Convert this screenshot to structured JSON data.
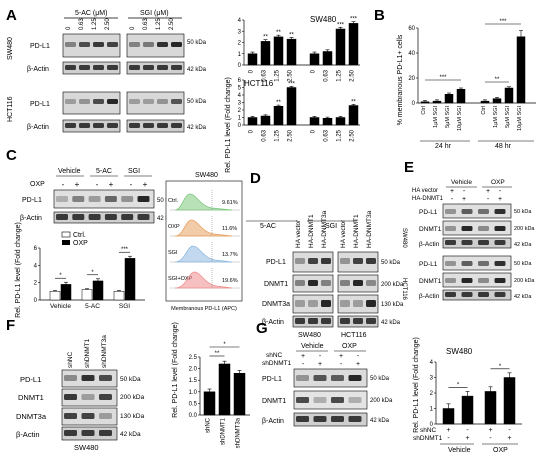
{
  "panels": [
    {
      "letter": "A"
    },
    {
      "letter": "B"
    },
    {
      "letter": "C"
    },
    {
      "letter": "D"
    },
    {
      "letter": "E"
    },
    {
      "letter": "F"
    },
    {
      "letter": "G"
    }
  ],
  "panelA": {
    "treat_5ac": "5-AC (μM)",
    "treat_sgi": "SGI (μM)",
    "doses": [
      "0",
      "0.63",
      "1.25",
      "2.50"
    ],
    "cell_sw": "SW480",
    "cell_hct": "HCT116",
    "band_pdl1": "PD-L1",
    "band_actin": "β-Actin",
    "mw_50": "50 kDa",
    "mw_42": "42 kDa"
  },
  "chart_data": [
    {
      "id": "A_sw480",
      "type": "bar",
      "title": "SW480",
      "ylabel": "Rel. PD-L1 level (Fold change)",
      "groups": [
        "5-AC",
        "SGI"
      ],
      "categories": [
        "0",
        "0.63",
        "1.25",
        "2.50"
      ],
      "series": [
        {
          "name": "5-AC",
          "values": [
            1.0,
            2.1,
            2.5,
            2.3
          ]
        },
        {
          "name": "SGI",
          "values": [
            1.0,
            1.2,
            3.2,
            3.7
          ]
        }
      ],
      "ylim": [
        0,
        4
      ],
      "yticks": [
        "0",
        "1",
        "2",
        "3",
        "4"
      ],
      "annotations": [
        [
          "",
          "**",
          "**",
          "**"
        ],
        [
          "",
          "",
          "***",
          "***"
        ]
      ]
    },
    {
      "id": "A_hct116",
      "type": "bar",
      "title": "HCT116",
      "groups": [
        "5-AC",
        "SGI"
      ],
      "categories": [
        "0",
        "0.63",
        "1.25",
        "2.50"
      ],
      "series": [
        {
          "name": "5-AC",
          "values": [
            1.0,
            1.2,
            2.5,
            5.0
          ]
        },
        {
          "name": "SGI",
          "values": [
            1.0,
            0.9,
            1.0,
            2.6
          ]
        }
      ],
      "ylim": [
        0,
        6
      ],
      "yticks": [
        "0",
        "1",
        "2",
        "3",
        "4",
        "5",
        "6"
      ],
      "annotations": [
        [
          "",
          "",
          "**",
          "***"
        ],
        [
          "",
          "",
          "",
          "**"
        ]
      ]
    },
    {
      "id": "B",
      "type": "bar",
      "ylabel": "% membranous PD-L1+ cells",
      "groups": [
        "24 hr",
        "48 hr"
      ],
      "categories": [
        "Ctrl",
        "1μM SGI",
        "5μM SGI",
        "10μM SGI"
      ],
      "series": [
        {
          "name": "24 hr",
          "values": [
            1.0,
            1.5,
            7.0,
            11.0
          ]
        },
        {
          "name": "48 hr",
          "values": [
            1.5,
            3.5,
            12.0,
            53.0
          ]
        }
      ],
      "ylim": [
        0,
        60
      ],
      "yticks": [
        "0",
        "20",
        "40",
        "60"
      ],
      "brackets": [
        "***",
        "**",
        "***"
      ]
    },
    {
      "id": "C",
      "type": "bar",
      "ylabel": "Rel. PD-L1 level (Fold change)",
      "categories": [
        "Vehicle",
        "5-AC",
        "SGI"
      ],
      "series": [
        {
          "name": "Ctrl.",
          "values": [
            1.0,
            1.2,
            1.0
          ]
        },
        {
          "name": "OXP",
          "values": [
            1.8,
            2.2,
            4.8
          ]
        }
      ],
      "ylim": [
        0,
        6
      ],
      "yticks": [
        "0",
        "2",
        "4",
        "6"
      ],
      "annotations": [
        "*",
        "*",
        "***"
      ]
    },
    {
      "id": "F",
      "type": "bar",
      "ylabel": "Rel. PD-L1 level (Fold change)",
      "categories": [
        "shNC",
        "shDNMT1",
        "shDNMT3a"
      ],
      "values": [
        1.0,
        2.2,
        1.8
      ],
      "ylim": [
        0,
        2.5
      ],
      "yticks": [
        "0.0",
        "0.5",
        "1.0",
        "1.5",
        "2.0",
        "2.5"
      ],
      "brackets": [
        "**",
        "*"
      ]
    },
    {
      "id": "G",
      "type": "bar",
      "title": "SW480",
      "ylabel": "Rel. PD-L1 level (Fold change)",
      "categories": [
        "Vehicle -",
        "Vehicle +",
        "OXP -",
        "OXP +"
      ],
      "values": [
        1.0,
        1.8,
        2.1,
        3.0
      ],
      "ylim": [
        0,
        4
      ],
      "yticks": [
        "0",
        "1",
        "2",
        "3",
        "4"
      ],
      "brackets": [
        "*",
        "*"
      ]
    }
  ],
  "panelB": {
    "x_ctrl": "Ctrl",
    "x_1": "1μM SGI",
    "x_5": "5μM SGI",
    "x_10": "10μM SGI",
    "t24": "24 hr",
    "t48": "48 hr"
  },
  "panelC": {
    "oxp": "OXP",
    "vehicle": "Vehicle",
    "ac": "5-AC",
    "sgi": "SGI",
    "legend_ctrl": "Ctrl.",
    "legend_oxp": "OXP",
    "flow_title": "SW480",
    "flow_xlabel": "Membranous PD-L1 (APC)",
    "flow_rows": [
      {
        "label": "Ctrl.",
        "pct": "9.61%",
        "color": "#7ec87e"
      },
      {
        "label": "OXP",
        "pct": "11.6%",
        "color": "#e8a060"
      },
      {
        "label": "SGI",
        "pct": "13.7%",
        "color": "#8fb8e0"
      },
      {
        "label": "SGI+OXP",
        "pct": "19.6%",
        "color": "#f08c8c"
      }
    ]
  },
  "panelD": {
    "lanes_sw": [
      "HA vector",
      "HA-DNMT1",
      "HA-DNMT3a"
    ],
    "lanes_hct": [
      "HA vector",
      "HA-DNMT1",
      "HA-DNMT3a"
    ],
    "bands": [
      "PD-L1",
      "DNMT1",
      "DNMT3a",
      "β-Actin"
    ],
    "mw": [
      "50 kDa",
      "200 kDa",
      "130 kDa",
      "42 kDa"
    ],
    "cell_sw": "SW480",
    "cell_hct": "HCT116"
  },
  "panelE": {
    "vehicle": "Vehicle",
    "oxp": "OXP",
    "ha_vector": "HA vector",
    "ha_dnmt1": "HA-DNMT1",
    "bands": [
      "PD-L1",
      "DNMT1",
      "β-Actin"
    ],
    "mw": [
      "50 kDa",
      "200 kDa",
      "42 kDa"
    ],
    "cell_sw": "SW480",
    "cell_hct": "HCT116"
  },
  "panelF": {
    "lanes": [
      "shNC",
      "shDNMT1",
      "shDNMT3a"
    ],
    "bands": [
      "PD-L1",
      "DNMT1",
      "DNMT3a",
      "β-Actin"
    ],
    "mw": [
      "50 kDa",
      "200 kDa",
      "130 kDa",
      "42 kDa"
    ],
    "cell": "SW480"
  },
  "panelG": {
    "vehicle": "Vehicle",
    "oxp": "OXP",
    "shnc": "shNC",
    "shdnmt1": "shDNMT1",
    "bands": [
      "PD-L1",
      "DNMT1",
      "β-Actin"
    ],
    "mw": [
      "50 kDa",
      "200 kDa",
      "42 kDa"
    ]
  },
  "signs": {
    "plus": "+",
    "minus": "-"
  }
}
